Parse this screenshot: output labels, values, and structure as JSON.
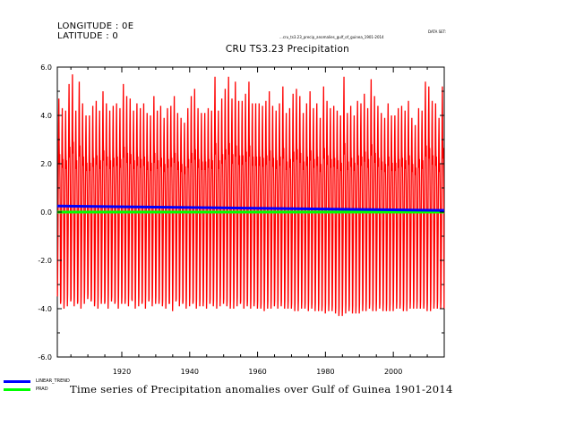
{
  "header": {
    "longitude": "LONGITUDE : 0E",
    "latitude": "LATITUDE : 0",
    "data_info": "DATA SET:",
    "data_path": "...cru_ts3.23_precip_anomalies_gulf_of_guinea_1901-2014",
    "chart_title": "CRU TS3.23 Precipitation"
  },
  "legend": {
    "items": [
      {
        "label": "LINEAR_TREND",
        "color": "#0000ff"
      },
      {
        "label": "PRAD",
        "color": "#00ff00"
      }
    ]
  },
  "bottom_title": "Time series of Precipitation anomalies over Gulf of Guinea 1901-2014",
  "chart_data": {
    "type": "line",
    "title": "CRU TS3.23 Precipitation",
    "xlabel": "",
    "ylabel": "",
    "xlim": [
      1901,
      2015
    ],
    "ylim": [
      -6,
      6
    ],
    "xticks": [
      1920,
      1940,
      1960,
      1980,
      2000
    ],
    "yticks": [
      -6,
      -4,
      -2,
      0,
      2,
      4,
      6
    ],
    "ytick_labels": [
      "-6.0",
      "-4.0",
      "-2.0",
      "0.0",
      "2.0",
      "4.0",
      "6.0"
    ],
    "series": [
      {
        "name": "",
        "color": "#ff0000",
        "description": "monthly precipitation anomaly, oscillating roughly between -4 and +5",
        "annual_peaks": [
          4.7,
          4.3,
          4.2,
          5.3,
          5.7,
          4.2,
          5.4,
          4.5,
          4.0,
          4.0,
          4.4,
          4.6,
          4.2,
          5.0,
          4.5,
          4.2,
          4.4,
          4.5,
          4.3,
          5.3,
          4.8,
          4.7,
          4.2,
          4.5,
          4.3,
          4.5,
          4.1,
          4.0,
          4.8,
          4.2,
          4.4,
          3.9,
          4.3,
          4.4,
          4.8,
          4.1,
          3.9,
          3.7,
          4.3,
          4.8,
          5.1,
          4.3,
          4.1,
          4.1,
          4.3,
          4.2,
          5.6,
          4.2,
          4.7,
          5.1,
          5.6,
          4.7,
          5.4,
          4.6,
          4.6,
          4.9,
          5.4,
          4.5,
          4.5,
          4.5,
          4.4,
          4.6,
          5.0,
          4.4,
          4.2,
          4.5,
          5.2,
          4.1,
          4.3,
          4.9,
          5.1,
          4.8,
          4.1,
          4.5,
          5.0,
          4.3,
          4.5,
          3.9,
          5.2,
          4.6,
          4.3,
          4.4,
          4.2,
          4.0,
          5.6,
          4.1,
          4.4,
          4.0,
          4.6,
          4.5,
          4.9,
          4.3,
          5.5,
          4.8,
          4.4,
          4.1,
          3.9,
          4.5,
          4.0,
          4.0,
          4.3,
          4.4,
          4.2,
          4.6,
          3.9,
          3.6,
          4.3,
          4.2,
          5.4,
          5.2,
          4.6,
          4.5,
          3.9,
          5.2
        ],
        "annual_troughs": [
          -3.8,
          -4.0,
          -3.9,
          -3.7,
          -3.9,
          -3.8,
          -4.0,
          -3.8,
          -3.6,
          -3.7,
          -3.9,
          -4.0,
          -3.8,
          -3.8,
          -4.0,
          -3.7,
          -3.8,
          -4.0,
          -3.8,
          -3.8,
          -3.9,
          -3.6,
          -4.0,
          -3.9,
          -3.8,
          -4.0,
          -3.7,
          -3.9,
          -3.8,
          -3.8,
          -3.9,
          -4.0,
          -3.8,
          -4.1,
          -3.7,
          -3.9,
          -3.8,
          -4.0,
          -3.9,
          -3.8,
          -4.0,
          -3.9,
          -3.9,
          -4.0,
          -3.8,
          -3.9,
          -4.0,
          -3.9,
          -3.8,
          -3.9,
          -4.0,
          -4.0,
          -3.9,
          -3.8,
          -4.0,
          -3.9,
          -4.0,
          -3.9,
          -4.0,
          -4.0,
          -4.1,
          -4.0,
          -4.0,
          -3.9,
          -4.0,
          -3.9,
          -4.0,
          -4.0,
          -4.0,
          -4.1,
          -4.1,
          -4.0,
          -4.0,
          -4.1,
          -4.0,
          -4.1,
          -4.1,
          -4.1,
          -4.2,
          -4.1,
          -4.1,
          -4.2,
          -4.3,
          -4.3,
          -4.2,
          -4.1,
          -4.2,
          -4.2,
          -4.2,
          -4.1,
          -4.1,
          -4.0,
          -4.1,
          -4.1,
          -4.0,
          -4.1,
          -4.1,
          -4.1,
          -4.1,
          -4.0,
          -4.0,
          -4.1,
          -4.1,
          -4.0,
          -4.0,
          -4.0,
          -4.0,
          -4.0,
          -4.1,
          -4.1,
          -4.0,
          -4.0,
          -4.0,
          -4.0
        ]
      },
      {
        "name": "LINEAR_TREND",
        "color": "#0000ff",
        "x": [
          1901,
          2015
        ],
        "values": [
          0.25,
          0.07
        ]
      },
      {
        "name": "PRAD",
        "color": "#00ff00",
        "x": [
          1901,
          2015
        ],
        "values": [
          0.0,
          0.0
        ]
      }
    ]
  }
}
